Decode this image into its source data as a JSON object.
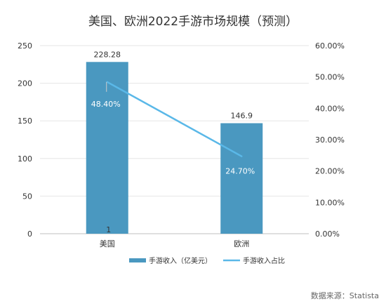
{
  "chart_data": {
    "type": "bar",
    "title": "美国、欧洲2022手游市场规模（预测）",
    "categories": [
      "美国",
      "欧洲"
    ],
    "series": [
      {
        "name": "手游收入（亿美元）",
        "kind": "bar",
        "axis": "left",
        "values": [
          228.28,
          146.9
        ],
        "labels": [
          "228.28",
          "146.9"
        ]
      },
      {
        "name": "手游收入占比",
        "kind": "line",
        "axis": "right",
        "values": [
          0.484,
          0.247
        ],
        "labels": [
          "48.40%",
          "24.70%"
        ]
      }
    ],
    "ylim": [
      0,
      250
    ],
    "y_ticks": [
      "0",
      "50",
      "100",
      "150",
      "200",
      "250"
    ],
    "y2lim": [
      0,
      0.6
    ],
    "y2_ticks": [
      "0.00%",
      "10.00%",
      "20.00%",
      "30.00%",
      "40.00%",
      "50.00%",
      "60.00%"
    ],
    "grid": true,
    "legend": "bottom",
    "stray_label": "1",
    "colors": {
      "bar": "#4a98c0",
      "line": "#5ab8e8",
      "grid": "#e6e6e6",
      "axis": "#bfbfbf"
    }
  },
  "source": "数据来源：Statista"
}
